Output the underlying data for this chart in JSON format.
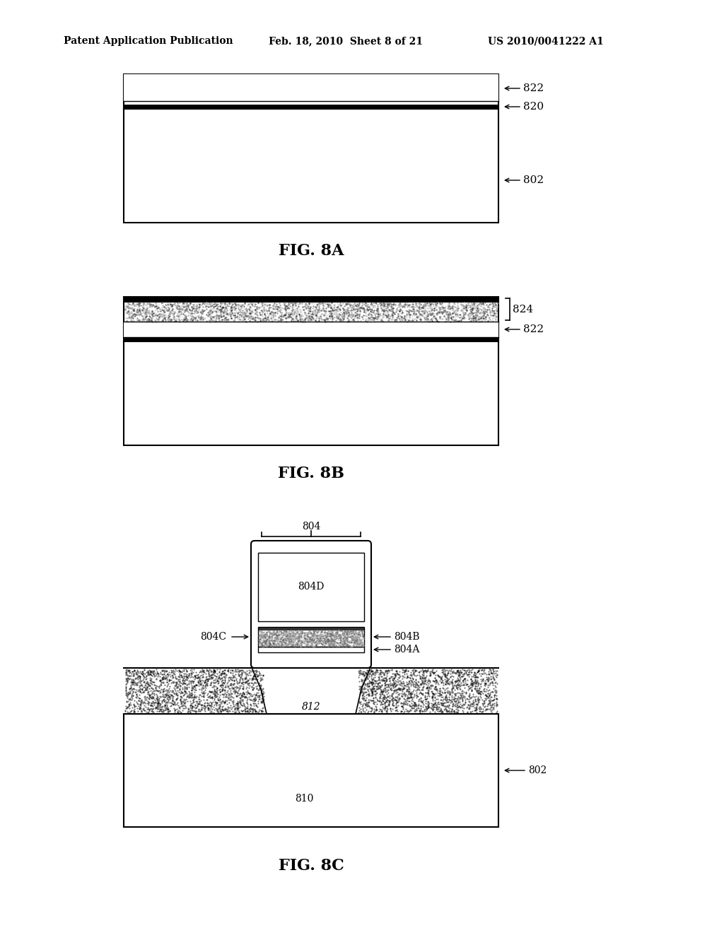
{
  "bg_color": "#ffffff",
  "header_left": "Patent Application Publication",
  "header_mid": "Feb. 18, 2010  Sheet 8 of 21",
  "header_right": "US 2010/0041222 A1",
  "fig8a_label": "FIG. 8A",
  "fig8b_label": "FIG. 8B",
  "fig8c_label": "FIG. 8C",
  "label_822a": "822",
  "label_820": "820",
  "label_802a": "802",
  "label_824": "824",
  "label_822b": "822",
  "label_804": "804",
  "label_804d": "804D",
  "label_804c": "804C",
  "label_804b": "804B",
  "label_804a": "804A",
  "label_812": "812",
  "label_802b": "802",
  "label_810": "810"
}
